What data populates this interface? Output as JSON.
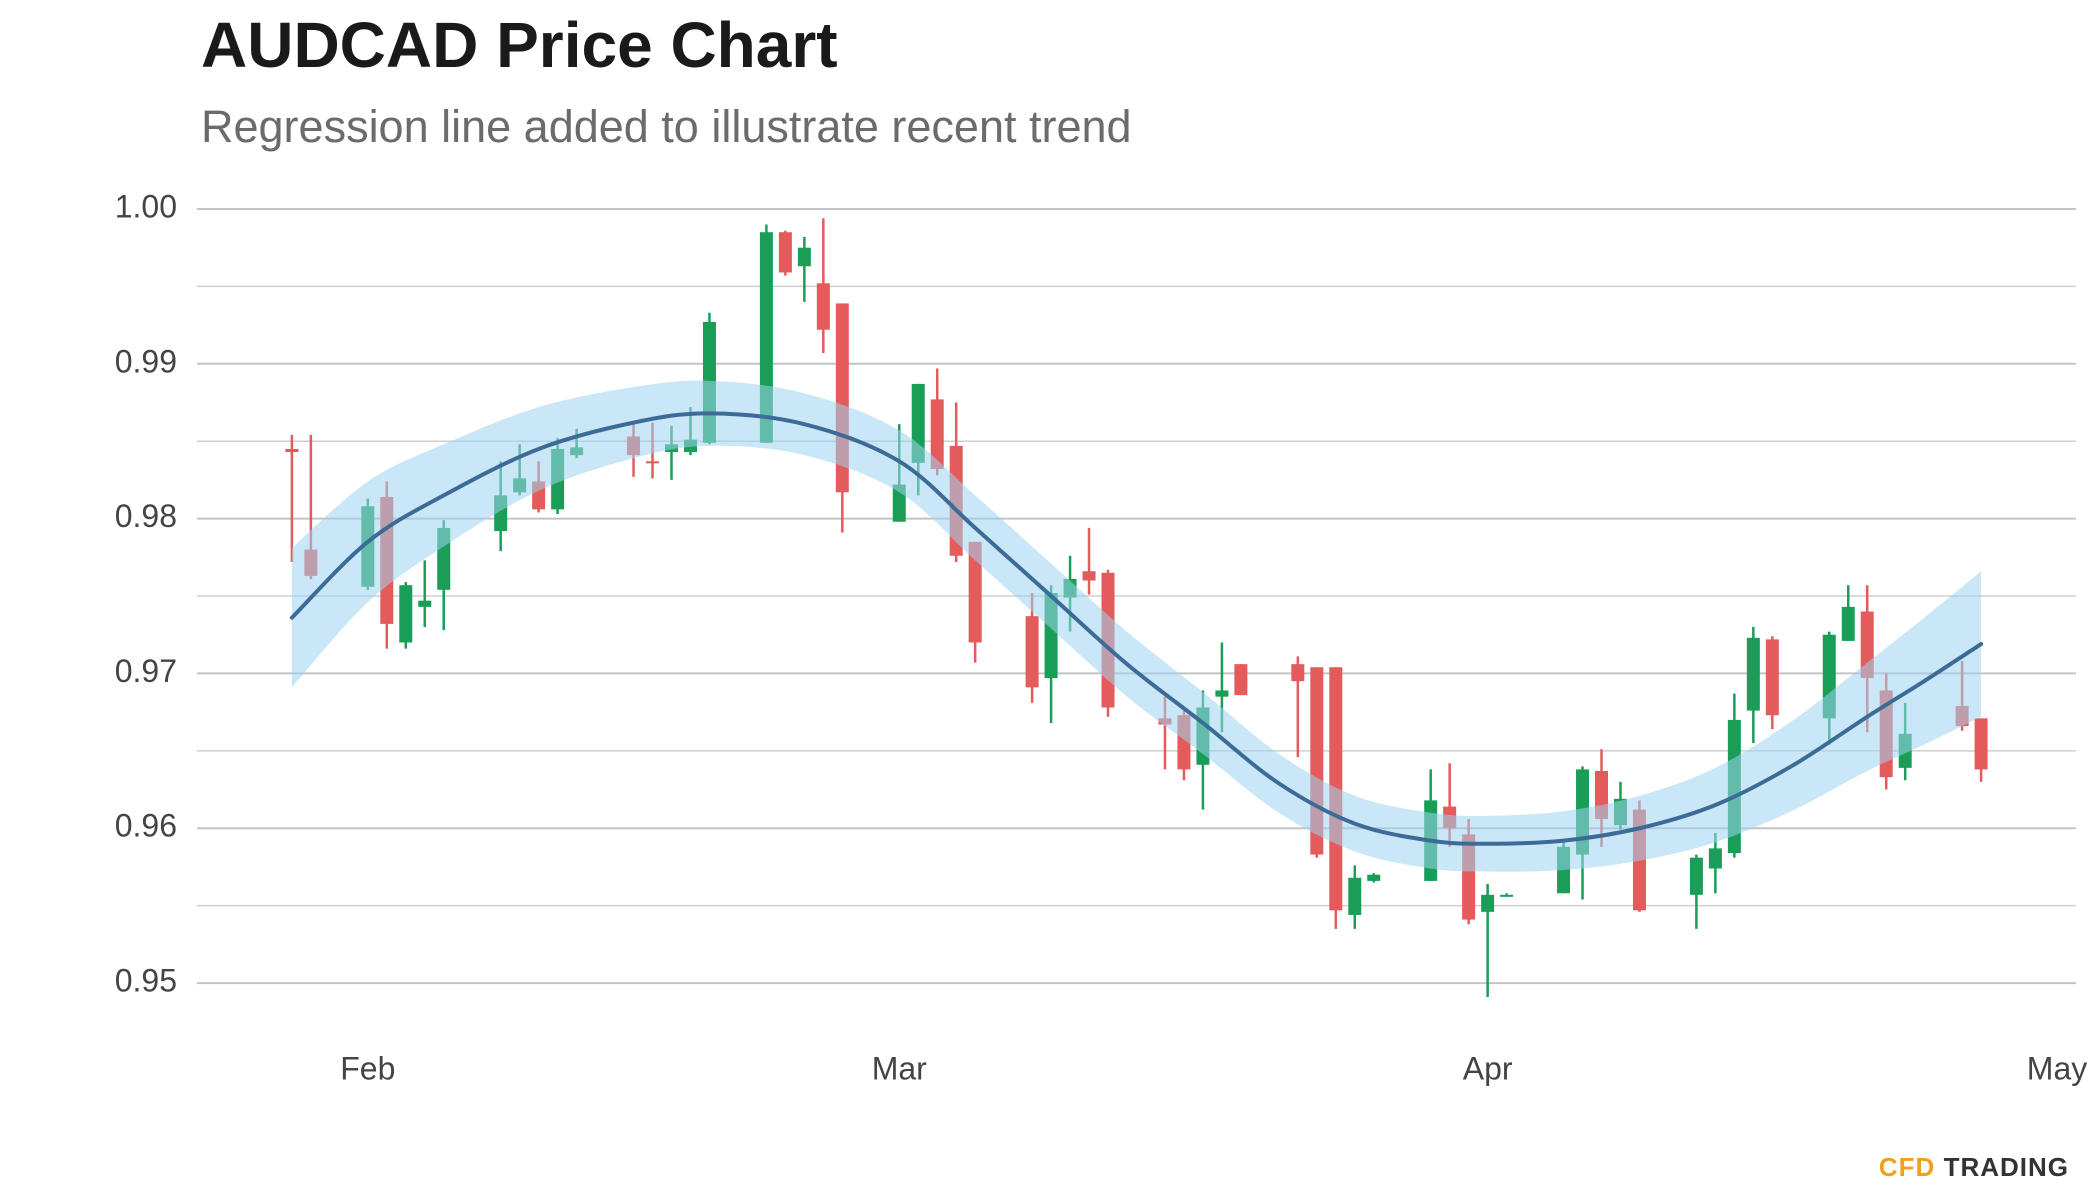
{
  "chart_data": {
    "type": "candlestick",
    "title": "AUDCAD Price Chart",
    "subtitle": "Regression line added to illustrate recent trend",
    "brand": {
      "prefix": "CFD",
      "name": "TRADING"
    },
    "x": [
      28,
      29,
      32,
      33,
      34,
      35,
      36,
      39,
      40,
      41,
      42,
      43,
      46,
      47,
      48,
      49,
      50,
      53,
      54,
      55,
      56,
      57,
      60,
      61,
      62,
      63,
      64,
      67,
      68,
      69,
      70,
      71,
      74,
      75,
      76,
      77,
      78,
      81,
      82,
      83,
      84,
      85,
      88,
      89,
      90,
      91,
      92,
      95,
      96,
      97,
      98,
      99,
      102,
      103,
      104,
      105,
      106,
      109,
      110,
      111,
      112,
      113,
      116,
      117
    ],
    "open": [
      0.9845,
      0.978,
      0.9756,
      0.9814,
      0.972,
      0.9743,
      0.9754,
      0.9792,
      0.9817,
      0.9824,
      0.9806,
      0.9841,
      0.9853,
      0.9837,
      0.9843,
      0.9843,
      0.9849,
      0.9849,
      0.9985,
      0.9963,
      0.9952,
      0.9939,
      0.9798,
      0.9836,
      0.9877,
      0.9847,
      0.9785,
      0.9737,
      0.9697,
      0.9749,
      0.9766,
      0.9765,
      0.9671,
      0.9673,
      0.9641,
      0.9685,
      0.9706,
      0.9706,
      0.9704,
      0.9704,
      0.9544,
      0.9566,
      0.9566,
      0.9614,
      0.9596,
      0.9546,
      0.9556,
      0.9558,
      0.9583,
      0.9637,
      0.9602,
      0.9612,
      0.9557,
      0.9574,
      0.9584,
      0.9676,
      0.9722,
      0.9671,
      0.9721,
      0.974,
      0.9689,
      0.9639,
      0.9679,
      0.9671
    ],
    "high": [
      0.9854,
      0.9854,
      0.9813,
      0.9824,
      0.9759,
      0.9773,
      0.9799,
      0.9837,
      0.9848,
      0.9837,
      0.9852,
      0.9858,
      0.9862,
      0.9862,
      0.986,
      0.9872,
      0.9933,
      0.999,
      0.9986,
      0.9982,
      0.9994,
      0.9939,
      0.9861,
      0.9887,
      0.9897,
      0.9875,
      0.9785,
      0.9752,
      0.9757,
      0.9776,
      0.9794,
      0.9767,
      0.9685,
      0.9676,
      0.9689,
      0.972,
      0.9706,
      0.9711,
      0.9704,
      0.9704,
      0.9576,
      0.9571,
      0.9638,
      0.9642,
      0.9606,
      0.9564,
      0.9558,
      0.9592,
      0.964,
      0.9651,
      0.963,
      0.9618,
      0.9583,
      0.9597,
      0.9687,
      0.973,
      0.9724,
      0.9727,
      0.9757,
      0.9757,
      0.97,
      0.9681,
      0.9708,
      0.9671
    ],
    "low": [
      0.9772,
      0.9761,
      0.9754,
      0.9716,
      0.9716,
      0.973,
      0.9728,
      0.9779,
      0.9815,
      0.9804,
      0.9803,
      0.9839,
      0.9827,
      0.9826,
      0.9825,
      0.9841,
      0.9848,
      0.9849,
      0.9957,
      0.994,
      0.9907,
      0.9791,
      0.9798,
      0.9815,
      0.9828,
      0.9772,
      0.9707,
      0.9681,
      0.9668,
      0.9727,
      0.9751,
      0.9672,
      0.9638,
      0.9631,
      0.9612,
      0.9662,
      0.9686,
      0.9646,
      0.9581,
      0.9535,
      0.9535,
      0.9565,
      0.9566,
      0.9588,
      0.9538,
      0.9491,
      0.9556,
      0.9558,
      0.9554,
      0.9588,
      0.9599,
      0.9546,
      0.9535,
      0.9558,
      0.9581,
      0.9655,
      0.9664,
      0.9654,
      0.9721,
      0.9662,
      0.9625,
      0.9631,
      0.9663,
      0.963
    ],
    "close": [
      0.9843,
      0.9763,
      0.9808,
      0.9732,
      0.9757,
      0.9747,
      0.9794,
      0.9815,
      0.9826,
      0.9806,
      0.9845,
      0.9846,
      0.9841,
      0.9836,
      0.9848,
      0.9851,
      0.9927,
      0.9985,
      0.9959,
      0.9975,
      0.9922,
      0.9817,
      0.9822,
      0.9887,
      0.9832,
      0.9776,
      0.972,
      0.9691,
      0.9752,
      0.9761,
      0.976,
      0.9678,
      0.9667,
      0.9638,
      0.9678,
      0.9689,
      0.9686,
      0.9695,
      0.9583,
      0.9547,
      0.9568,
      0.957,
      0.9618,
      0.96,
      0.9541,
      0.9557,
      0.9557,
      0.9588,
      0.9638,
      0.9606,
      0.9619,
      0.9547,
      0.9581,
      0.9587,
      0.967,
      0.9723,
      0.9673,
      0.9725,
      0.9743,
      0.9697,
      0.9633,
      0.9661,
      0.9666,
      0.9638
    ],
    "up_color": "#1a9e57",
    "down_color": "#e45b5b",
    "regression": {
      "color": "#3d6b98",
      "band_color": "#9fd4f0",
      "x": [
        28,
        32,
        36,
        41,
        46,
        50,
        55,
        60,
        64,
        68,
        72,
        76,
        80,
        84,
        88,
        91,
        95,
        99,
        103,
        107,
        111,
        114,
        117
      ],
      "values": [
        0.9736,
        0.9785,
        0.9815,
        0.9845,
        0.9862,
        0.9868,
        0.9861,
        0.9837,
        0.9794,
        0.975,
        0.9706,
        0.9668,
        0.9629,
        0.9603,
        0.9592,
        0.959,
        0.9592,
        0.96,
        0.9615,
        0.964,
        0.9672,
        0.9695,
        0.9719
      ],
      "lower": [
        0.9691,
        0.9746,
        0.9782,
        0.9818,
        0.9839,
        0.9847,
        0.9841,
        0.9817,
        0.9773,
        0.9729,
        0.9685,
        0.9648,
        0.961,
        0.9585,
        0.9574,
        0.9572,
        0.9573,
        0.9579,
        0.9591,
        0.9611,
        0.9637,
        0.9654,
        0.9672
      ],
      "upper": [
        0.9781,
        0.9824,
        0.9848,
        0.9872,
        0.9885,
        0.9889,
        0.9881,
        0.9857,
        0.9815,
        0.9771,
        0.9727,
        0.9688,
        0.9648,
        0.9621,
        0.961,
        0.9608,
        0.9611,
        0.9621,
        0.9639,
        0.9669,
        0.9707,
        0.9736,
        0.9766
      ]
    },
    "xlim": [
      23,
      122
    ],
    "xticks": [
      {
        "value": 32,
        "label": "Feb"
      },
      {
        "value": 60,
        "label": "Mar"
      },
      {
        "value": 91,
        "label": "Apr"
      },
      {
        "value": 121,
        "label": "May"
      }
    ],
    "ylim": [
      0.946,
      1.001
    ],
    "yticks": [
      0.95,
      0.96,
      0.97,
      0.98,
      0.99,
      {
        "value": 1,
        "label": "1.00"
      }
    ],
    "yminor": [
      0.955,
      0.965,
      0.975,
      0.985,
      0.995
    ],
    "grid": true
  }
}
